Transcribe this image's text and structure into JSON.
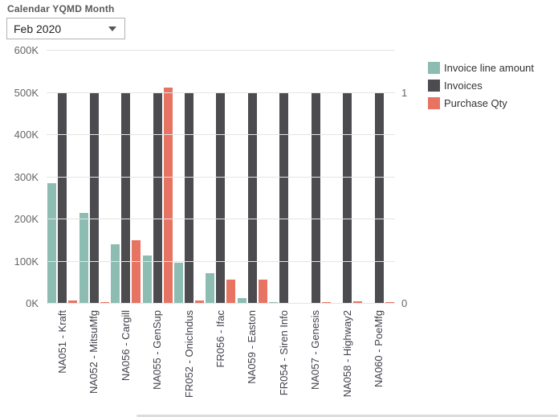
{
  "slicer": {
    "label": "Calendar YQMD Month",
    "value": "Feb 2020"
  },
  "legend_items": [
    {
      "label": "Invoice line amount",
      "color": "#8dbcb2"
    },
    {
      "label": "Invoices",
      "color": "#4c4b50"
    },
    {
      "label": "Purchase Qty",
      "color": "#e77462"
    }
  ],
  "chart_data": {
    "type": "bar",
    "title": "",
    "categories": [
      "NA051 - Kraft",
      "NA052 - MitsuMfg",
      "NA056 - Cargill",
      "NA055 - GenSup",
      "FR052 - OnicIndus",
      "FR056 - Ifac",
      "NA059 - Easton",
      "FR054 - Siren Info",
      "NA057 - Genesis",
      "NA058 - Highway2",
      "NA060 - PoeMfg"
    ],
    "series": [
      {
        "name": "Invoice line amount",
        "axis": "left",
        "color": "#8dbcb2",
        "values_thousands": [
          285,
          215,
          140,
          115,
          98,
          72,
          13,
          4,
          2,
          2,
          2
        ]
      },
      {
        "name": "Invoices",
        "axis": "right",
        "color": "#4c4b50",
        "values": [
          1,
          1,
          1,
          1,
          1,
          1,
          1,
          1,
          1,
          1,
          1
        ]
      },
      {
        "name": "Purchase Qty",
        "axis": "left",
        "color": "#e77462",
        "values_thousands": [
          8,
          3,
          150,
          512,
          8,
          57,
          57,
          0,
          3,
          5,
          4
        ]
      }
    ],
    "left_axis": {
      "ticks": [
        "0K",
        "100K",
        "200K",
        "300K",
        "400K",
        "500K",
        "600K"
      ],
      "min": 0,
      "max_thousands": 600
    },
    "right_axis": {
      "ticks": [
        "0",
        "1"
      ],
      "min": 0,
      "max": 1.2,
      "equiv_thousands_per_unit": 500
    },
    "legend_position": "top-right",
    "grid": true,
    "xlabel": "",
    "ylabel": ""
  }
}
